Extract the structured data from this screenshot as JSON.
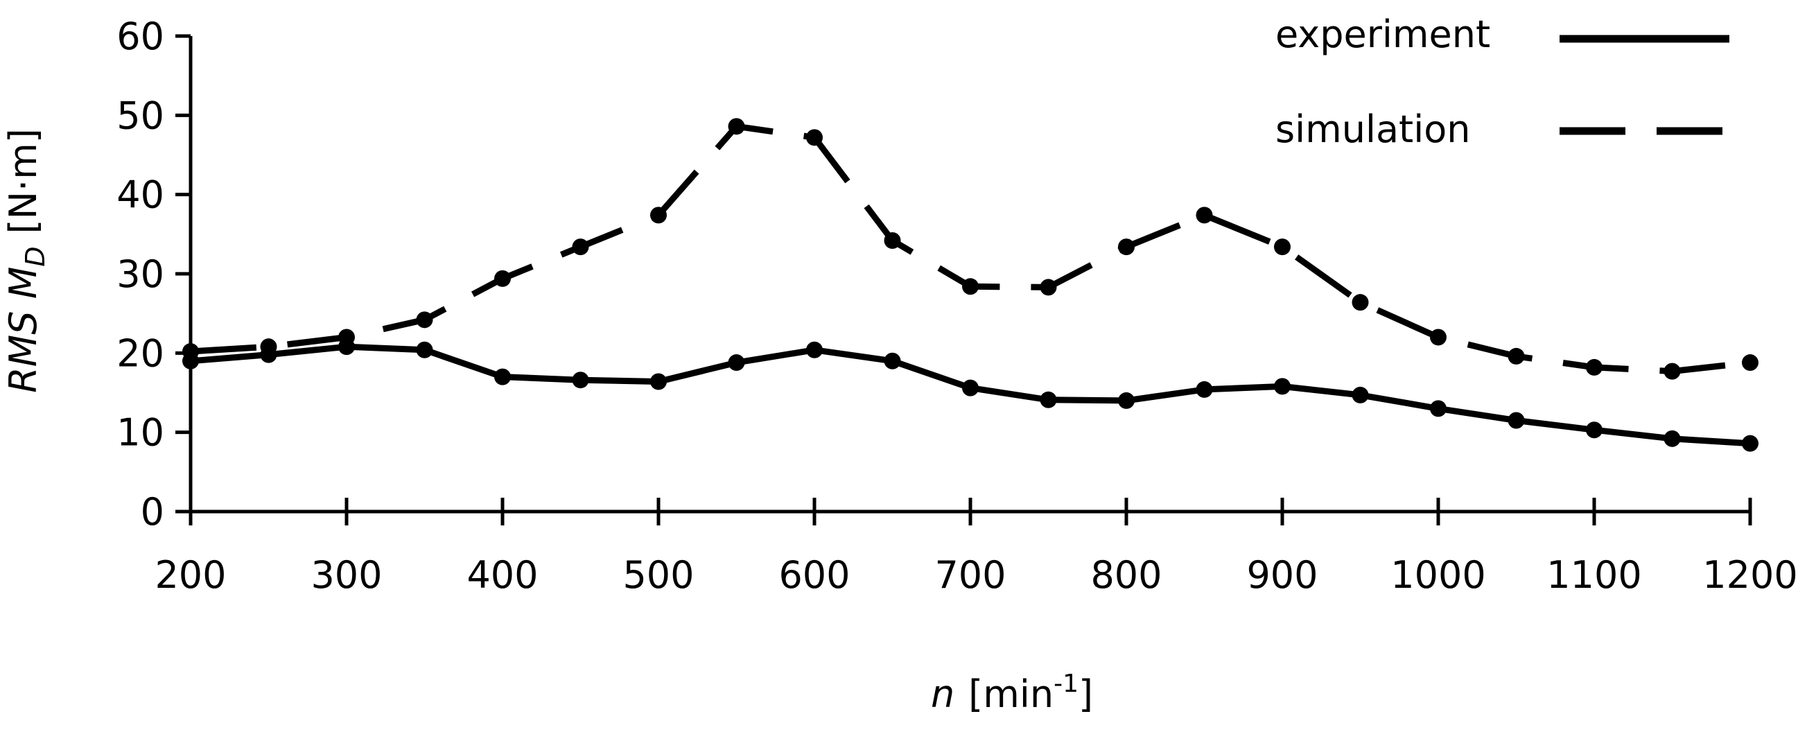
{
  "chart_data": {
    "type": "line",
    "xlim": [
      200,
      1200
    ],
    "ylim": [
      0,
      60
    ],
    "xticks": [
      200,
      300,
      400,
      500,
      600,
      700,
      800,
      900,
      1000,
      1100,
      1200
    ],
    "yticks": [
      0,
      10,
      20,
      30,
      40,
      50,
      60
    ],
    "xtick_labels": [
      "200",
      "300",
      "400",
      "500",
      "600",
      "700",
      "800",
      "900",
      "1000",
      "1100",
      "1200"
    ],
    "ytick_labels": [
      "0",
      "10",
      "20",
      "30",
      "40",
      "50",
      "60"
    ],
    "xlabel": {
      "var": "n",
      "unit_open": "[min",
      "unit_sup": "-1",
      "unit_close": "]"
    },
    "ylabel": {
      "prefix": "RMS M",
      "sub": "D",
      "unit": "[N·m]"
    },
    "grid": false,
    "legend_position": "top-right",
    "x": [
      200,
      250,
      300,
      350,
      400,
      450,
      500,
      550,
      600,
      650,
      700,
      750,
      800,
      850,
      900,
      950,
      1000,
      1050,
      1100,
      1150,
      1200
    ],
    "series": [
      {
        "name": "experiment",
        "style": "solid",
        "color": "#000000",
        "values": [
          19.0,
          19.8,
          20.8,
          20.4,
          17.0,
          16.6,
          16.4,
          18.8,
          20.4,
          19.0,
          15.6,
          14.1,
          14.0,
          15.4,
          15.8,
          14.7,
          13.0,
          11.5,
          10.3,
          9.2,
          8.6
        ]
      },
      {
        "name": "simulation",
        "style": "dashed",
        "color": "#000000",
        "values": [
          20.2,
          20.8,
          22.0,
          24.2,
          29.4,
          33.4,
          37.4,
          48.6,
          47.2,
          34.2,
          28.4,
          28.3,
          33.4,
          37.4,
          33.4,
          26.4,
          22.0,
          19.6,
          18.2,
          17.7,
          18.8
        ]
      }
    ]
  }
}
